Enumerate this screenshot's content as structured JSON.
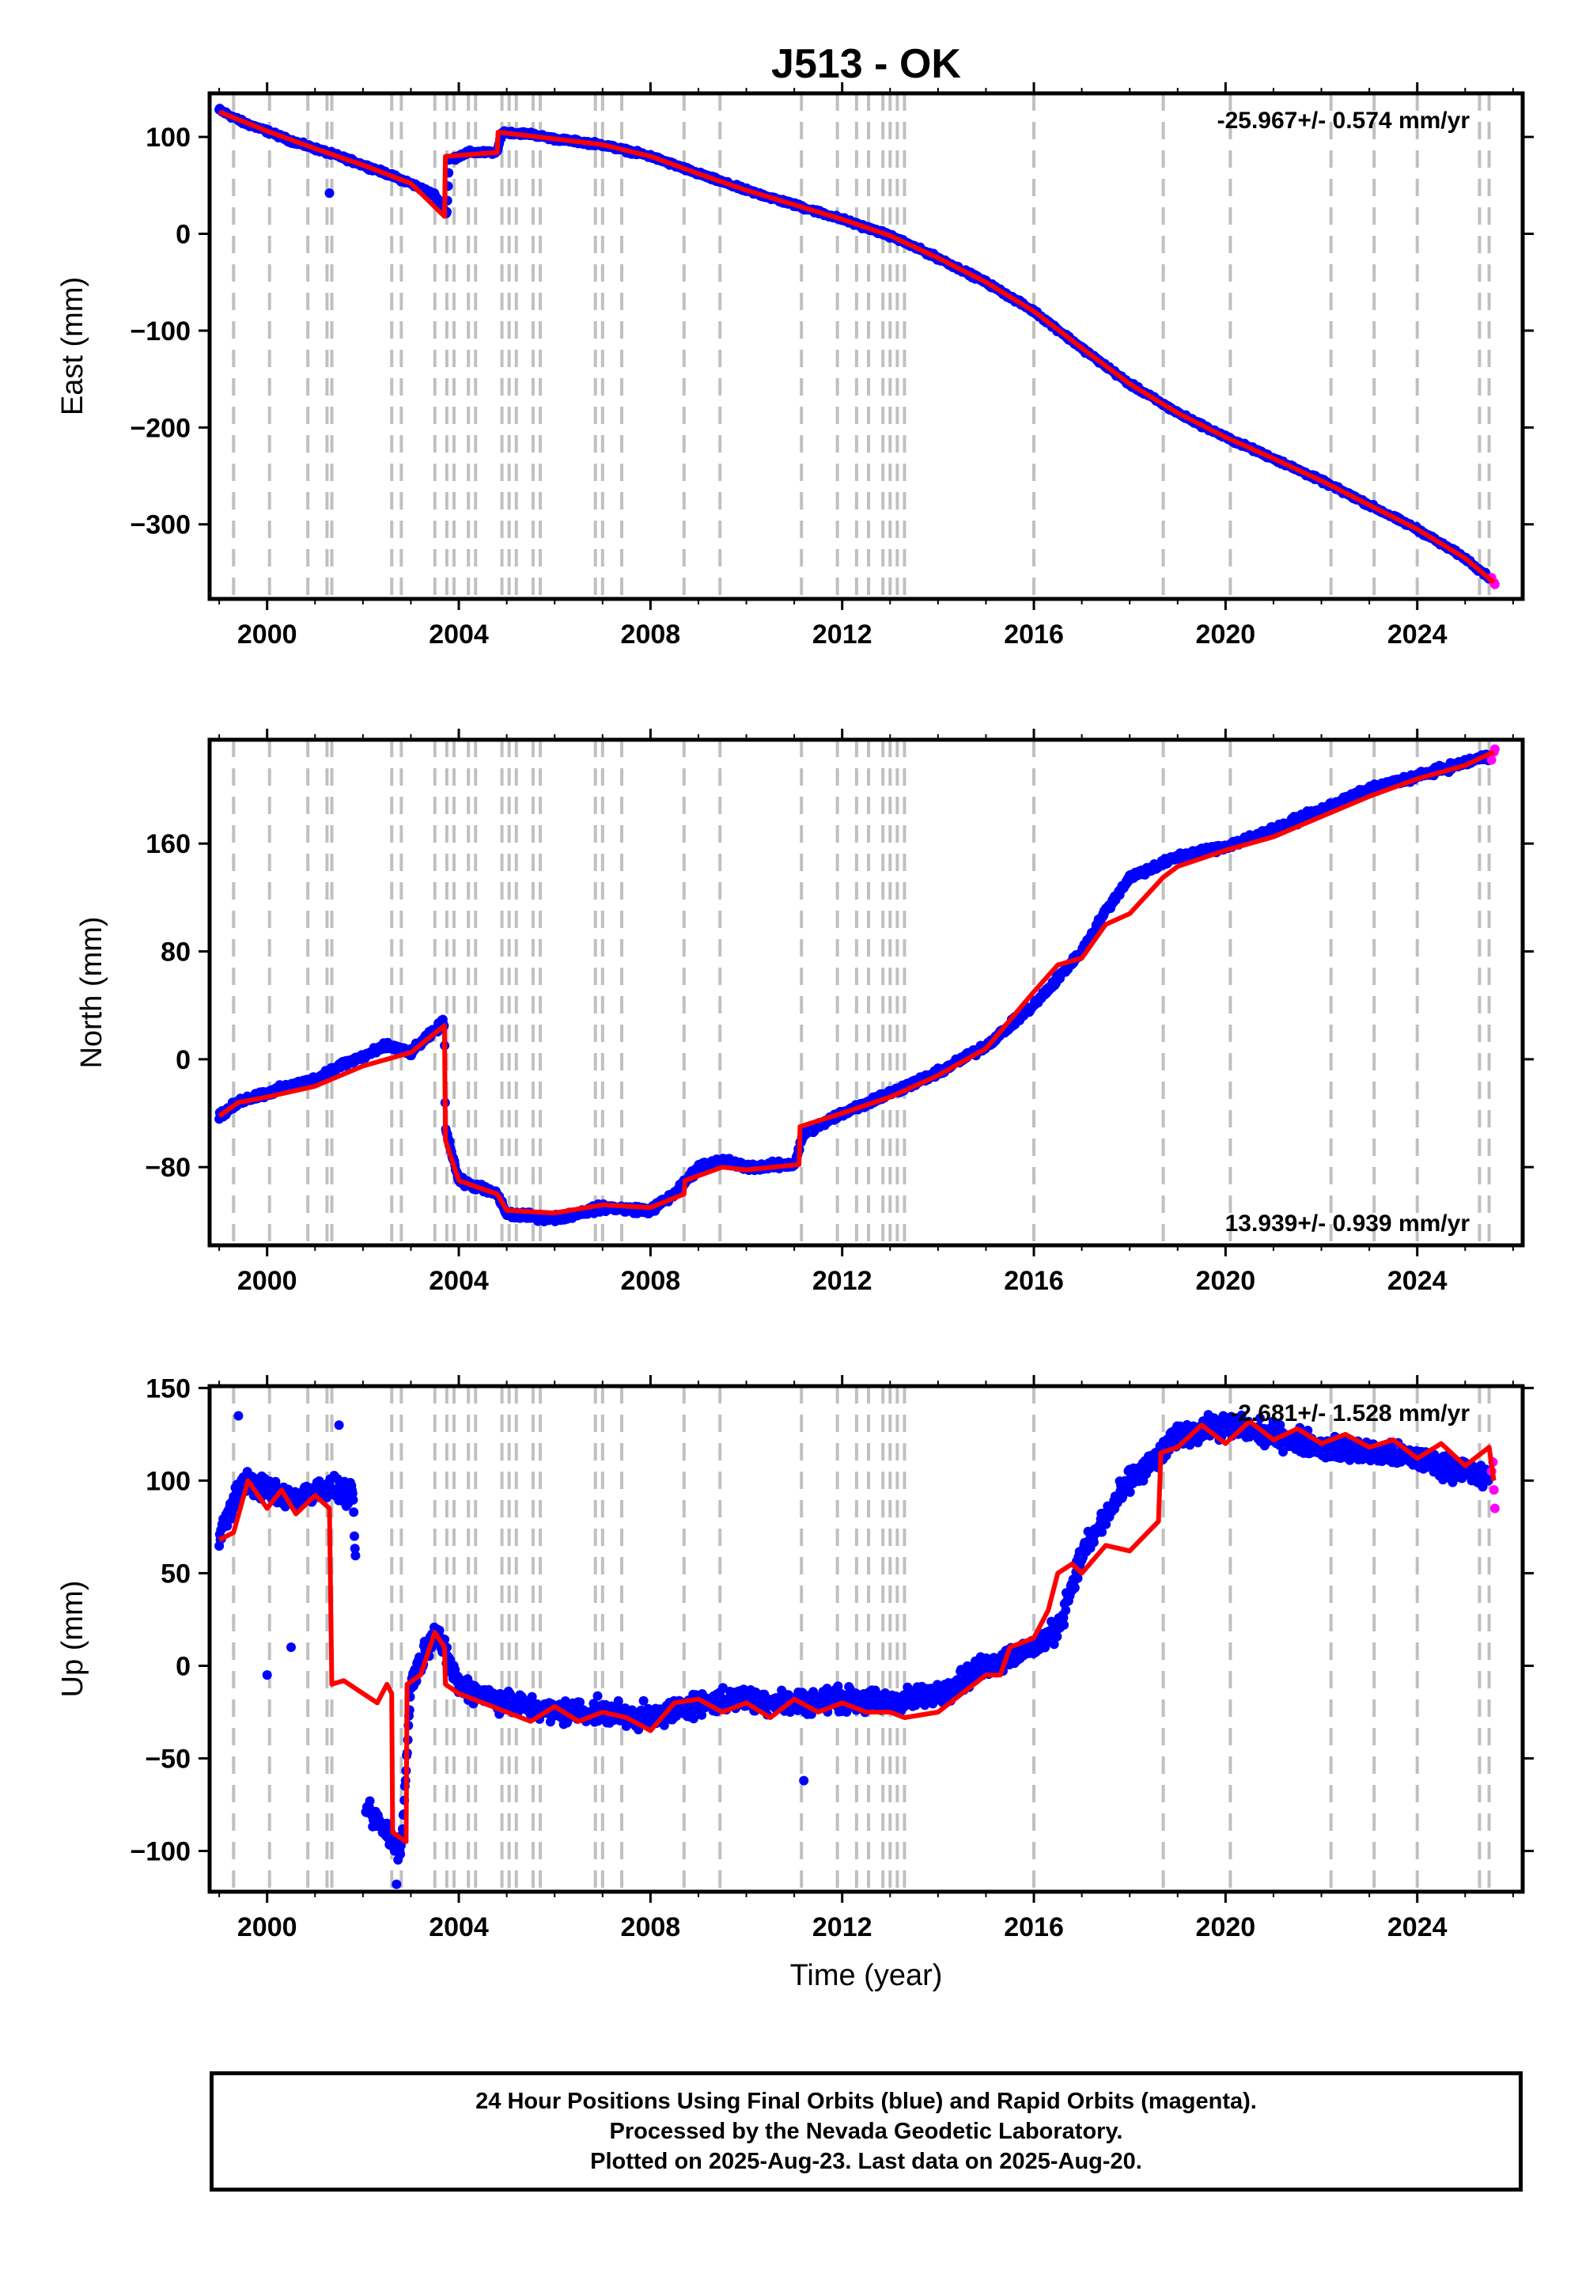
{
  "title": "J513 - OK",
  "footer": {
    "line1": "24 Hour Positions Using Final Orbits (blue) and Rapid Orbits (magenta).",
    "line2": "Processed by the Nevada Geodetic Laboratory.",
    "line3": "Plotted on 2025-Aug-23. Last data on 2025-Aug-20."
  },
  "colors": {
    "final_orbits": "#0000ff",
    "rapid_orbits": "#ff00ff",
    "model": "#ff0000",
    "event_lines": "#c0c0c0",
    "frame": "#000000"
  },
  "chart_data": [
    {
      "type": "scatter",
      "panel": "east",
      "ylabel": "East (mm)",
      "xlabel": "",
      "xlim": [
        1998.8,
        2026.2
      ],
      "ylim": [
        -377,
        145
      ],
      "xticks": [
        2000,
        2004,
        2008,
        2012,
        2016,
        2020,
        2024
      ],
      "yticks": [
        100,
        0,
        -100,
        -200,
        -300
      ],
      "ytick_labels": [
        "100",
        "0",
        "−100",
        "−200",
        "−300"
      ],
      "rate_label": "-25.967+/- 0.574 mm/yr",
      "rate_position": "top-right",
      "series": [
        {
          "name": "Final Orbits (blue)",
          "kind": "points",
          "color": "#0000ff",
          "x": [
            1999.0,
            1999.5,
            2000.0,
            2000.5,
            2001.0,
            2001.5,
            2002.0,
            2002.5,
            2003.0,
            2003.5,
            2003.75,
            2003.8,
            2004.2,
            2004.8,
            2004.9,
            2005.5,
            2006.0,
            2007.0,
            2008.0,
            2009.0,
            2010.0,
            2011.0,
            2012.0,
            2013.0,
            2014.0,
            2015.0,
            2016.0,
            2017.0,
            2018.0,
            2019.0,
            2020.0,
            2021.0,
            2022.0,
            2023.0,
            2024.0,
            2025.0,
            2025.5
          ],
          "y": [
            128,
            115,
            106,
            96,
            88,
            80,
            71,
            62,
            52,
            40,
            20,
            76,
            84,
            84,
            105,
            103,
            98,
            92,
            80,
            62,
            45,
            30,
            15,
            -2,
            -25,
            -50,
            -80,
            -118,
            -155,
            -185,
            -210,
            -232,
            -255,
            -280,
            -305,
            -335,
            -355
          ],
          "outliers": [
            {
              "x": 2001.3,
              "y": 42
            }
          ]
        },
        {
          "name": "Rapid Orbits (magenta)",
          "kind": "points",
          "color": "#ff00ff",
          "x": [
            2025.55,
            2025.6,
            2025.62
          ],
          "y": [
            -355,
            -360,
            -362
          ]
        },
        {
          "name": "Model",
          "kind": "line",
          "color": "#ff0000",
          "x": [
            1999.0,
            2000.0,
            2001.0,
            2002.0,
            2003.0,
            2003.7,
            2003.72,
            2004.8,
            2004.82,
            2006.0,
            2007.0,
            2008.0,
            2009.0,
            2010.0,
            2011.0,
            2012.0,
            2013.0,
            2014.0,
            2015.0,
            2016.0,
            2017.0,
            2018.0,
            2019.0,
            2020.0,
            2021.0,
            2022.0,
            2023.0,
            2024.0,
            2025.0,
            2025.6
          ],
          "y": [
            126,
            106,
            88,
            71,
            52,
            18,
            80,
            84,
            105,
            98,
            92,
            80,
            62,
            45,
            30,
            15,
            -2,
            -25,
            -50,
            -80,
            -118,
            -155,
            -185,
            -210,
            -232,
            -255,
            -280,
            -305,
            -335,
            -360
          ]
        }
      ]
    },
    {
      "type": "scatter",
      "panel": "north",
      "ylabel": "North (mm)",
      "xlabel": "",
      "xlim": [
        1998.8,
        2026.2
      ],
      "ylim": [
        -138,
        237
      ],
      "xticks": [
        2000,
        2004,
        2008,
        2012,
        2016,
        2020,
        2024
      ],
      "yticks": [
        160,
        80,
        0,
        -80
      ],
      "ytick_labels": [
        "160",
        "80",
        "0",
        "−80"
      ],
      "rate_label": "13.939+/- 0.939 mm/yr",
      "rate_position": "bottom-right",
      "series": [
        {
          "name": "Final Orbits (blue)",
          "kind": "points",
          "color": "#0000ff",
          "x": [
            1999.0,
            1999.5,
            2000.0,
            2001.0,
            2001.5,
            2002.0,
            2002.5,
            2003.0,
            2003.7,
            2003.72,
            2004.0,
            2004.8,
            2005.0,
            2006.0,
            2007.0,
            2008.0,
            2008.5,
            2009.0,
            2009.5,
            2010.0,
            2011.0,
            2011.2,
            2012.0,
            2013.0,
            2014.0,
            2015.0,
            2016.0,
            2016.5,
            2017.0,
            2017.5,
            2018.0,
            2019.0,
            2020.0,
            2021.0,
            2022.0,
            2023.0,
            2024.0,
            2025.0,
            2025.5
          ],
          "y": [
            -42,
            -30,
            -25,
            -15,
            -5,
            2,
            10,
            5,
            28,
            -50,
            -90,
            -100,
            -115,
            -118,
            -110,
            -112,
            -100,
            -80,
            -75,
            -80,
            -78,
            -55,
            -40,
            -25,
            -10,
            10,
            40,
            60,
            80,
            110,
            135,
            150,
            158,
            170,
            185,
            200,
            210,
            220,
            225
          ]
        },
        {
          "name": "Rapid Orbits (magenta)",
          "kind": "points",
          "color": "#ff00ff",
          "x": [
            2025.55,
            2025.6,
            2025.62
          ],
          "y": [
            222,
            228,
            230
          ]
        },
        {
          "name": "Model",
          "kind": "line",
          "color": "#ff0000",
          "x": [
            1999.0,
            1999.4,
            2000.0,
            2001.0,
            2002.0,
            2003.0,
            2003.7,
            2003.72,
            2004.0,
            2004.8,
            2005.0,
            2006.0,
            2007.0,
            2008.0,
            2008.7,
            2008.72,
            2009.5,
            2010.0,
            2011.1,
            2011.12,
            2012.0,
            2013.0,
            2014.0,
            2015.0,
            2016.0,
            2016.5,
            2017.0,
            2017.5,
            2018.0,
            2018.7,
            2019.0,
            2020.0,
            2021.0,
            2022.0,
            2023.0,
            2024.0,
            2025.0,
            2025.6
          ],
          "y": [
            -42,
            -32,
            -28,
            -20,
            -5,
            5,
            25,
            -60,
            -90,
            -100,
            -112,
            -114,
            -108,
            -110,
            -100,
            -90,
            -80,
            -82,
            -78,
            -50,
            -40,
            -28,
            -12,
            8,
            50,
            70,
            75,
            100,
            108,
            135,
            143,
            155,
            165,
            180,
            195,
            208,
            218,
            228
          ]
        }
      ]
    },
    {
      "type": "scatter",
      "panel": "up",
      "ylabel": "Up (mm)",
      "xlabel": "Time (year)",
      "xlim": [
        1998.8,
        2026.2
      ],
      "ylim": [
        -122,
        151
      ],
      "xticks": [
        2000,
        2004,
        2008,
        2012,
        2016,
        2020,
        2024
      ],
      "yticks": [
        150,
        100,
        50,
        0,
        -50,
        -100
      ],
      "ytick_labels": [
        "150",
        "100",
        "50",
        "0",
        "−50",
        "−100"
      ],
      "rate_label": "-2.681+/- 1.528 mm/yr",
      "rate_position": "top-right",
      "series": [
        {
          "name": "Final Orbits (blue)",
          "kind": "points",
          "color": "#0000ff",
          "x": [
            1999.0,
            1999.5,
            2000.0,
            2000.5,
            2001.0,
            2001.5,
            2001.8,
            2002.0,
            2002.5,
            2002.8,
            2003.0,
            2003.5,
            2004.0,
            2005.0,
            2006.0,
            2007.0,
            2008.0,
            2009.0,
            2010.0,
            2011.0,
            2012.0,
            2013.0,
            2014.0,
            2015.0,
            2016.0,
            2016.5,
            2017.0,
            2017.5,
            2018.0,
            2018.7,
            2019.0,
            2020.0,
            2021.0,
            2022.0,
            2023.0,
            2024.0,
            2025.0,
            2025.5
          ],
          "y": [
            70,
            100,
            95,
            90,
            95,
            95,
            90,
            -75,
            -90,
            -100,
            -10,
            20,
            -10,
            -20,
            -25,
            -25,
            -28,
            -20,
            -18,
            -20,
            -18,
            -20,
            -15,
            0,
            10,
            20,
            60,
            80,
            100,
            115,
            125,
            130,
            125,
            118,
            115,
            112,
            105,
            100
          ],
          "outliers": [
            {
              "x": 2000.0,
              "y": -5
            },
            {
              "x": 2000.5,
              "y": 10
            },
            {
              "x": 2001.5,
              "y": 130
            },
            {
              "x": 2011.2,
              "y": -62
            },
            {
              "x": 2002.7,
              "y": -118
            },
            {
              "x": 1999.4,
              "y": 135
            }
          ]
        },
        {
          "name": "Rapid Orbits (magenta)",
          "kind": "points",
          "color": "#ff00ff",
          "x": [
            2025.55,
            2025.6,
            2025.62,
            2025.58
          ],
          "y": [
            105,
            95,
            85,
            110
          ]
        },
        {
          "name": "Model",
          "kind": "line",
          "color": "#ff0000",
          "x": [
            1999.0,
            1999.3,
            1999.6,
            2000.0,
            2000.3,
            2000.6,
            2001.0,
            2001.3,
            2001.35,
            2001.6,
            2002.0,
            2002.3,
            2002.5,
            2002.6,
            2002.62,
            2002.9,
            2002.92,
            2003.2,
            2003.5,
            2003.7,
            2003.72,
            2004.0,
            2004.5,
            2005.0,
            2005.5,
            2006.0,
            2006.5,
            2007.0,
            2007.5,
            2008.0,
            2008.5,
            2009.0,
            2009.5,
            2010.0,
            2010.5,
            2011.0,
            2011.5,
            2012.0,
            2012.5,
            2013.0,
            2013.3,
            2014.0,
            2014.5,
            2015.0,
            2015.3,
            2015.5,
            2016.0,
            2016.3,
            2016.5,
            2016.8,
            2017.0,
            2017.5,
            2018.0,
            2018.6,
            2018.65,
            2019.0,
            2019.5,
            2020.0,
            2020.5,
            2021.0,
            2021.5,
            2022.0,
            2022.5,
            2023.0,
            2023.5,
            2024.0,
            2024.5,
            2025.0,
            2025.5,
            2025.6
          ],
          "y": [
            68,
            72,
            100,
            85,
            95,
            82,
            92,
            85,
            -10,
            -8,
            -15,
            -20,
            -10,
            -15,
            -90,
            -95,
            -10,
            -5,
            18,
            10,
            -10,
            -15,
            -20,
            -25,
            -30,
            -22,
            -30,
            -25,
            -28,
            -35,
            -20,
            -18,
            -25,
            -20,
            -28,
            -18,
            -25,
            -20,
            -25,
            -25,
            -28,
            -25,
            -15,
            -5,
            -5,
            10,
            15,
            30,
            50,
            55,
            50,
            65,
            62,
            78,
            115,
            118,
            130,
            120,
            132,
            122,
            128,
            120,
            125,
            118,
            122,
            112,
            120,
            108,
            118,
            100
          ]
        }
      ]
    }
  ],
  "event_lines_x": [
    1999.3,
    2000.05,
    2000.85,
    2001.25,
    2001.35,
    2002.6,
    2002.8,
    2003.5,
    2003.75,
    2003.9,
    2004.2,
    2004.35,
    2004.9,
    2005.05,
    2005.2,
    2005.55,
    2005.7,
    2006.85,
    2007.0,
    2007.4,
    2008.7,
    2009.45,
    2011.15,
    2011.9,
    2012.3,
    2012.55,
    2012.85,
    2013.0,
    2013.15,
    2013.3,
    2016.0,
    2018.7,
    2020.1,
    2022.2,
    2023.1,
    2024.0,
    2025.3,
    2025.5
  ]
}
